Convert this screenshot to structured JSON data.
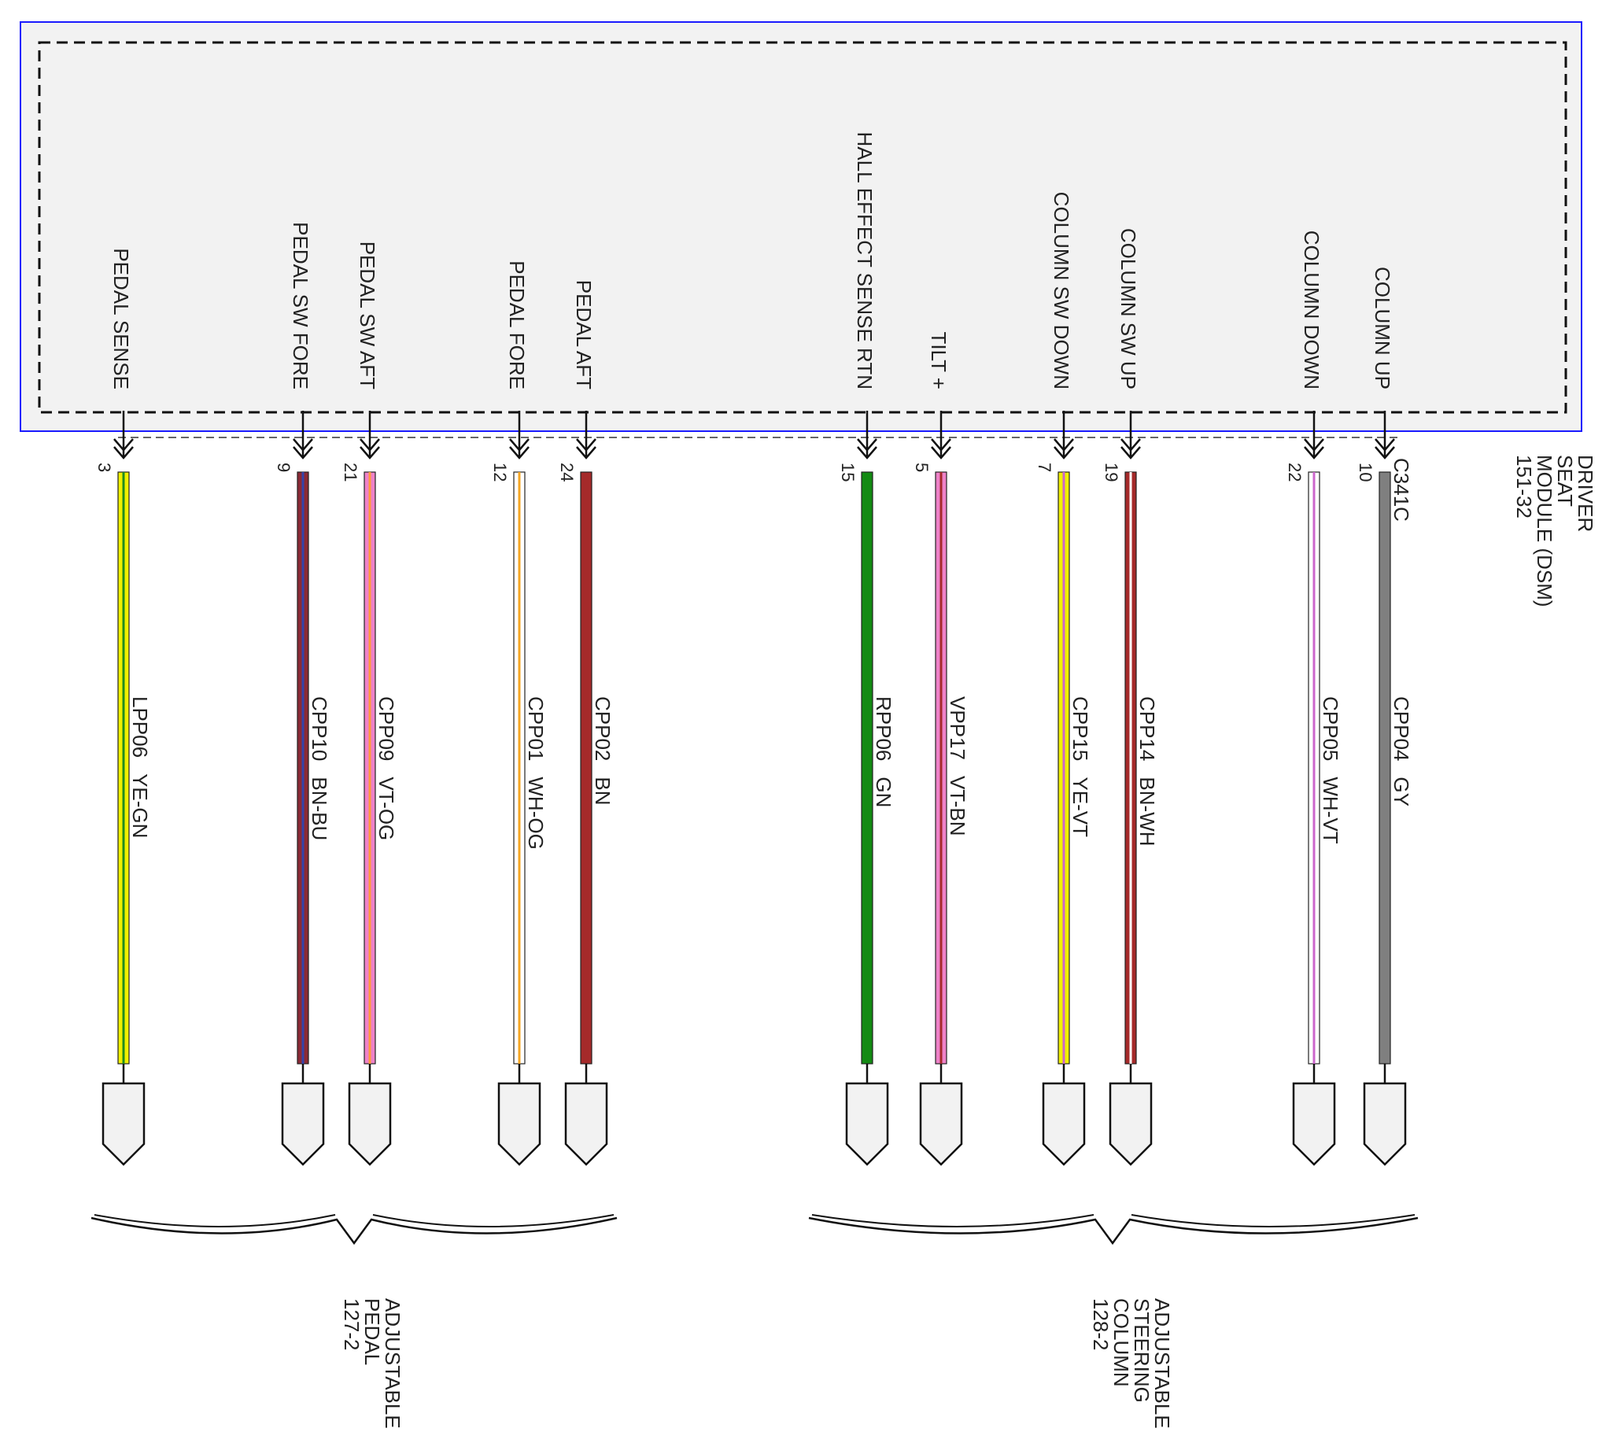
{
  "module": {
    "name_lines": [
      "DRIVER",
      "SEAT",
      "MODULE (DSM)",
      "151-32"
    ],
    "connector": "C341C",
    "box_fill": "#f2f2f2",
    "border_color": "#1a1aff"
  },
  "circuits": [
    {
      "id": "pedal-sense",
      "function": "PEDAL SENSE",
      "pin": "3",
      "circuit": "LPP06",
      "color_code": "YE-GN",
      "base": "#f0f000",
      "stripe": "#1f8c1f",
      "group": 0
    },
    {
      "id": "pedal-sw-fore",
      "function": "PEDAL SW FORE",
      "pin": "9",
      "circuit": "CPP10",
      "color_code": "BN-BU",
      "base": "#8b2a35",
      "stripe": "#3344aa",
      "group": 0
    },
    {
      "id": "pedal-sw-aft",
      "function": "PEDAL SW AFT",
      "pin": "21",
      "circuit": "CPP09",
      "color_code": "VT-OG",
      "base": "#ee82c8",
      "stripe": "#ff9a3c",
      "group": 0
    },
    {
      "id": "pedal-fore",
      "function": "PEDAL FORE",
      "pin": "12",
      "circuit": "CPP01",
      "color_code": "WH-OG",
      "base": "#ffffff",
      "stripe": "#f5a623",
      "group": 0
    },
    {
      "id": "pedal-aft",
      "function": "PEDAL AFT",
      "pin": "24",
      "circuit": "CPP02",
      "color_code": "BN",
      "base": "#a52a2a",
      "stripe": "",
      "group": 0
    },
    {
      "id": "hall-effect-sense-rtn",
      "function": "HALL EFFECT SENSE RTN",
      "pin": "15",
      "circuit": "RPP06",
      "color_code": "GN",
      "base": "#138a13",
      "stripe": "",
      "group": 1
    },
    {
      "id": "tilt-plus",
      "function": "TILT +",
      "pin": "5",
      "circuit": "VPP17",
      "color_code": "VT-BN",
      "base": "#ee82c8",
      "stripe": "#a52a2a",
      "group": 1
    },
    {
      "id": "column-sw-down",
      "function": "COLUMN SW DOWN",
      "pin": "7",
      "circuit": "CPP15",
      "color_code": "YE-VT",
      "base": "#f0f000",
      "stripe": "#cc66cc",
      "group": 1
    },
    {
      "id": "column-sw-up",
      "function": "COLUMN SW UP",
      "pin": "19",
      "circuit": "CPP14",
      "color_code": "BN-WH",
      "base": "#a52a2a",
      "stripe": "#ffffff",
      "group": 1
    },
    {
      "id": "column-down",
      "function": "COLUMN DOWN",
      "pin": "22",
      "circuit": "CPP05",
      "color_code": "WH-VT",
      "base": "#ffffff",
      "stripe": "#cc66cc",
      "group": 1
    },
    {
      "id": "column-up",
      "function": "COLUMN UP",
      "pin": "10",
      "circuit": "CPP04",
      "color_code": "GY",
      "base": "#7f7f7f",
      "stripe": "",
      "group": 1
    }
  ],
  "destinations": [
    {
      "id": "adjustable-pedal",
      "lines": [
        "ADJUSTABLE",
        "PEDAL",
        "127-2"
      ]
    },
    {
      "id": "adjustable-steering-column",
      "lines": [
        "ADJUSTABLE",
        "STEERING",
        "COLUMN",
        "128-2"
      ]
    }
  ]
}
